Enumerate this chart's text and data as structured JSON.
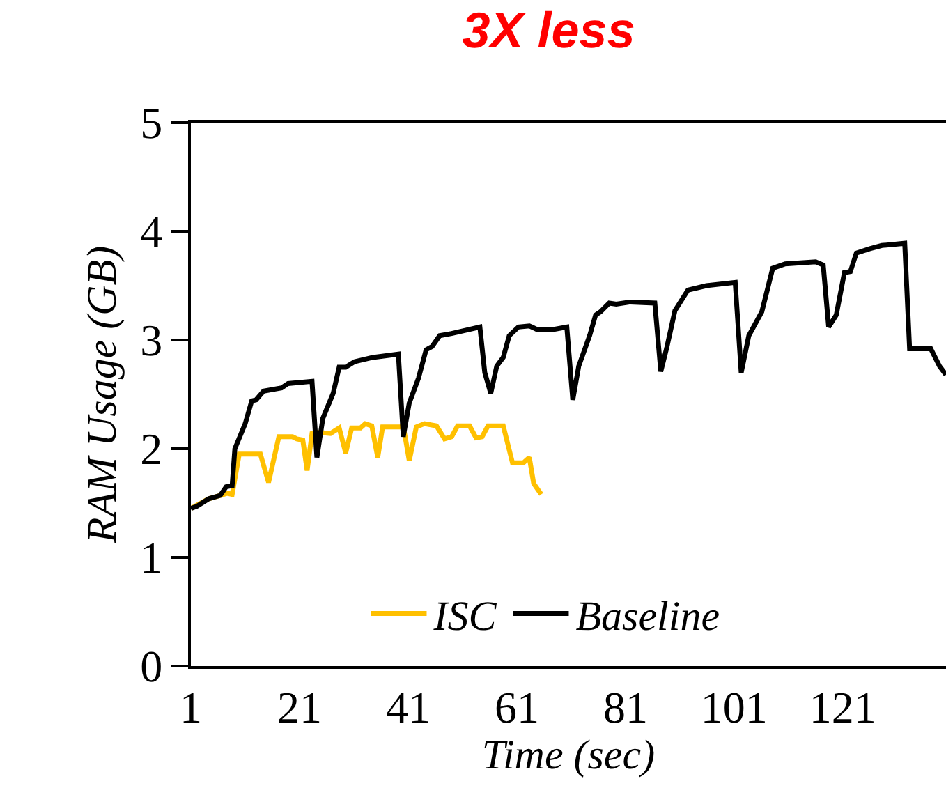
{
  "chart_data": {
    "type": "line",
    "title": "3X less",
    "xlabel": "Time (sec)",
    "ylabel": "RAM Usage (GB)",
    "xlim": [
      1,
      140
    ],
    "xticks": [
      1,
      21,
      41,
      61,
      81,
      101,
      121
    ],
    "ylim": [
      0,
      5
    ],
    "yticks": [
      0,
      1,
      2,
      3,
      4,
      5
    ],
    "legend": "bottom",
    "marker": "none",
    "line_style": "solid",
    "series": [
      {
        "name": "ISC",
        "color": "#ffc000",
        "x": [
          1,
          4.3,
          6.4,
          7.7,
          8.6,
          9.9,
          13.8,
          15.3,
          17.2,
          19.7,
          20.5,
          21.6,
          22.4,
          23.3,
          24.4,
          26.7,
          28.3,
          29.5,
          30.6,
          32.2,
          33.1,
          34.3,
          35.4,
          36.3,
          39.5,
          40.1,
          41.2,
          42.5,
          44,
          46.2,
          47.7,
          49,
          50.1,
          52.3,
          53.5,
          54.6,
          55.7,
          58.5,
          60.2,
          62.2,
          63.3,
          64.1,
          65.5
        ],
        "values": [
          1.45,
          1.54,
          1.57,
          1.59,
          1.58,
          1.95,
          1.95,
          1.69,
          2.11,
          2.11,
          2.09,
          2.08,
          1.8,
          2.14,
          2.15,
          2.14,
          2.19,
          1.96,
          2.19,
          2.19,
          2.23,
          2.21,
          1.92,
          2.2,
          2.2,
          2.21,
          1.89,
          2.2,
          2.23,
          2.21,
          2.09,
          2.11,
          2.21,
          2.21,
          2.1,
          2.11,
          2.21,
          2.21,
          1.87,
          1.87,
          1.92,
          1.68,
          1.58
        ]
      },
      {
        "name": "Baseline",
        "color": "#000000",
        "x": [
          1,
          2.1,
          4.3,
          6.4,
          7.5,
          8.6,
          9.1,
          11,
          12.2,
          13,
          14.4,
          17.7,
          18.9,
          23.3,
          24.2,
          25.3,
          27.2,
          28.3,
          29.5,
          31.1,
          34.5,
          39.2,
          40.1,
          41.2,
          42.9,
          44.3,
          45.4,
          46.8,
          49,
          54.2,
          55.1,
          56.2,
          57.3,
          58.5,
          59.6,
          61.3,
          63.3,
          64.6,
          68,
          70.2,
          71.3,
          72.4,
          74.4,
          75.5,
          76.4,
          78,
          79.3,
          81.9,
          86.4,
          87.5,
          88.6,
          90.1,
          92.5,
          95.9,
          101.2,
          102.3,
          103.7,
          106.1,
          108.1,
          110.4,
          116,
          117.4,
          118.4,
          119.8,
          121.3,
          122.4,
          123.5,
          126,
          128.2,
          132.4,
          133.3,
          137.2,
          138.8,
          140
        ],
        "values": [
          1.45,
          1.47,
          1.54,
          1.57,
          1.65,
          1.66,
          2.0,
          2.23,
          2.44,
          2.45,
          2.53,
          2.56,
          2.6,
          2.62,
          1.92,
          2.28,
          2.51,
          2.75,
          2.75,
          2.8,
          2.84,
          2.87,
          2.11,
          2.42,
          2.65,
          2.91,
          2.94,
          3.04,
          3.06,
          3.12,
          2.7,
          2.51,
          2.76,
          2.84,
          3.04,
          3.12,
          3.13,
          3.1,
          3.1,
          3.12,
          2.45,
          2.76,
          3.04,
          3.23,
          3.26,
          3.34,
          3.33,
          3.35,
          3.34,
          2.71,
          2.93,
          3.27,
          3.46,
          3.5,
          3.53,
          2.7,
          3.04,
          3.26,
          3.66,
          3.7,
          3.72,
          3.69,
          3.12,
          3.23,
          3.62,
          3.63,
          3.8,
          3.84,
          3.87,
          3.89,
          2.92,
          2.92,
          2.76,
          2.68
        ]
      }
    ]
  }
}
